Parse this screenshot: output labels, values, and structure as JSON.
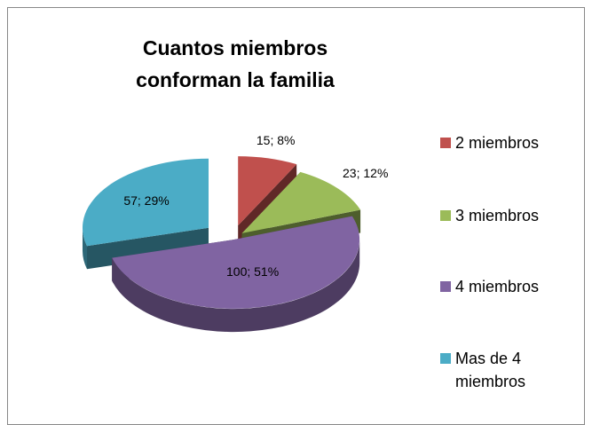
{
  "chart_data": {
    "type": "pie",
    "title": "Cuantos miembros conforman la familia",
    "categories": [
      "2 miembros",
      "3 miembros",
      "4 miembros",
      "Mas de 4 miembros"
    ],
    "values": [
      15,
      23,
      100,
      57
    ],
    "value_labels": [
      "15; 8%",
      "23; 12%",
      "100; 51%",
      "57; 29%"
    ],
    "colors": [
      "#c0504d",
      "#9bbb59",
      "#8064a2",
      "#4bacc6"
    ],
    "legend": "right"
  }
}
